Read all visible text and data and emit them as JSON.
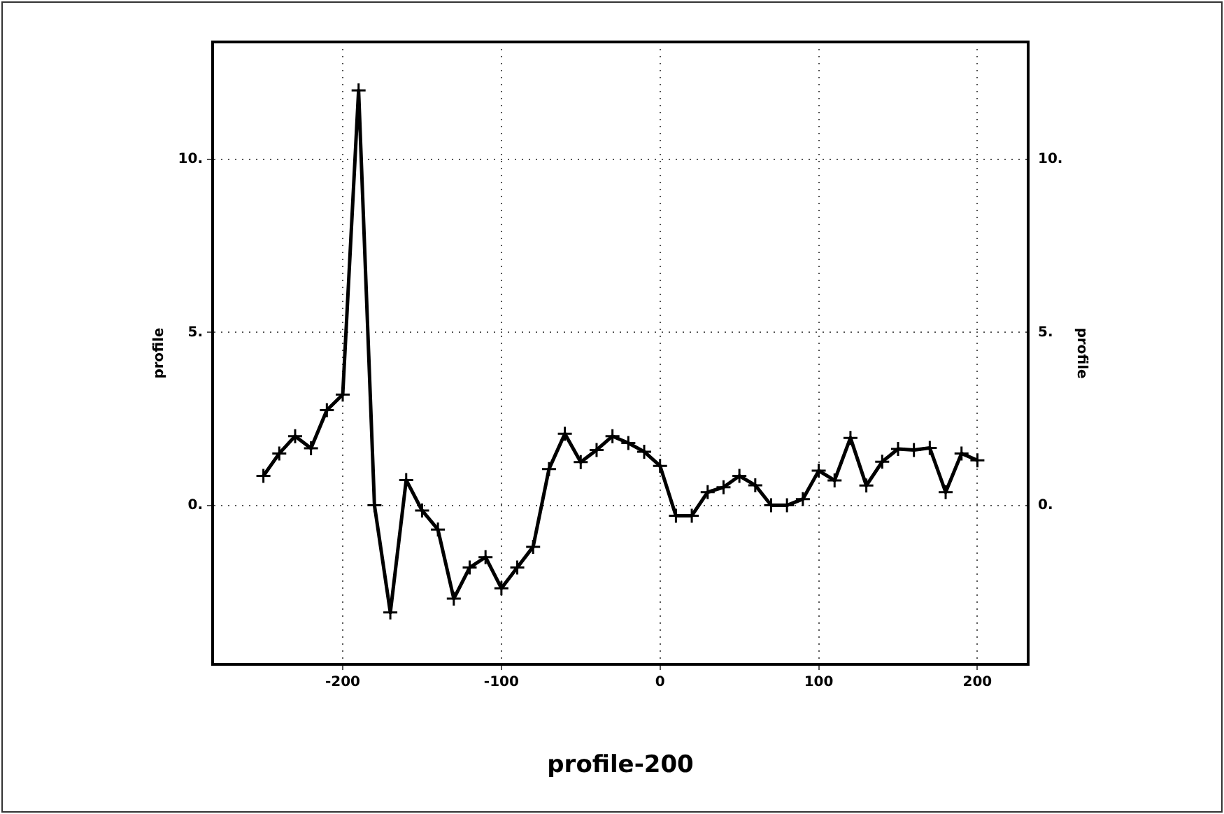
{
  "chart_data": {
    "type": "line",
    "xlabel": "profile-200",
    "ylabel": "profile",
    "y2label": "profile",
    "x": [
      -250,
      -240,
      -230,
      -220,
      -210,
      -200,
      -190,
      -180,
      -170,
      -160,
      -150,
      -140,
      -130,
      -120,
      -110,
      -100,
      -90,
      -80,
      -70,
      -60,
      -50,
      -40,
      -30,
      -20,
      -10,
      0,
      10,
      20,
      30,
      40,
      50,
      60,
      70,
      80,
      90,
      100,
      110,
      120,
      130,
      140,
      150,
      160,
      170,
      180,
      190,
      200
    ],
    "series": [
      {
        "color": "#000000",
        "values": [
          0.85,
          1.5,
          2.0,
          1.65,
          2.75,
          3.2,
          12.0,
          0,
          -3.1,
          0.73,
          -0.15,
          -0.7,
          -2.7,
          -1.8,
          -1.5,
          -2.4,
          -1.8,
          -1.2,
          1.05,
          2.07,
          1.25,
          1.6,
          2.0,
          1.8,
          1.55,
          1.14,
          -0.3,
          -0.3,
          0.38,
          0.52,
          0.85,
          0.58,
          0,
          0,
          0.18,
          1.0,
          0.72,
          1.95,
          0.57,
          1.26,
          1.63,
          1.6,
          1.66,
          0.38,
          1.5,
          1.3
        ]
      }
    ],
    "xlim": [
      -282,
      232
    ],
    "xticks": [
      -200,
      -100,
      0,
      100,
      200
    ],
    "ylim": [
      -4.6,
      13.4
    ],
    "yticks": [
      {
        "value": 0,
        "label": "0."
      },
      {
        "value": 5,
        "label": "5."
      },
      {
        "value": 10,
        "label": "10."
      }
    ],
    "y2lim": [
      -4.6,
      13.4
    ],
    "y2ticks": [
      {
        "value": 0,
        "label": "0."
      },
      {
        "value": 5,
        "label": "5."
      },
      {
        "value": 10,
        "label": "10."
      }
    ],
    "grid": true,
    "marker": "cross",
    "line_style": "solid",
    "legend": false
  }
}
